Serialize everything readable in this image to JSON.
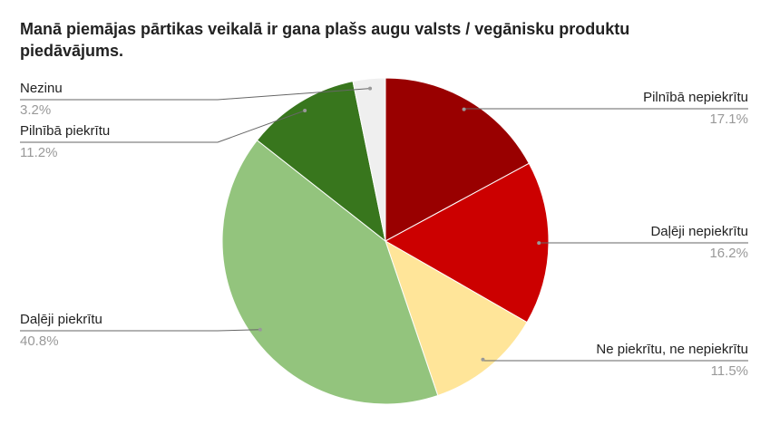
{
  "chart_data": {
    "type": "pie",
    "title": "Manā piemājas pārtikas veikalā ir gana plašs augu valsts / vegānisku produktu piedāvājums.",
    "categories": [
      "Pilnībā nepiekrītu",
      "Daļēji nepiekrītu",
      "Ne piekrītu, ne nepiekrītu",
      "Daļēji piekrītu",
      "Pilnībā piekrītu",
      "Nezinu"
    ],
    "values": [
      17.1,
      16.2,
      11.5,
      40.8,
      11.2,
      3.2
    ],
    "value_labels": [
      "17.1%",
      "16.2%",
      "11.5%",
      "40.8%",
      "11.2%",
      "3.2%"
    ],
    "colors": [
      "#990000",
      "#cc0000",
      "#ffe599",
      "#93c47d",
      "#38761d",
      "#efefef"
    ]
  }
}
